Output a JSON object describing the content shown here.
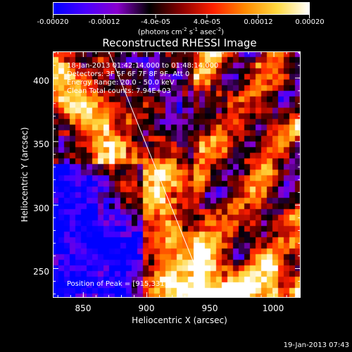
{
  "colorbar": {
    "tick_labels": [
      "-0.00020",
      "-0.00012",
      "-4.0e-05",
      "4.0e-05",
      "0.00012",
      "0.00020"
    ],
    "tick_values": [
      -0.0002,
      -0.00012,
      -4e-05,
      4e-05,
      0.00012,
      0.0002
    ],
    "range": [
      -0.0002,
      0.0002
    ],
    "units_main": "(photons cm",
    "units_exp1": "-2",
    "units_mid": " s",
    "units_exp2": "-1",
    "units_tail": " asec",
    "units_exp3": "-2",
    "units_close": ")",
    "colors": [
      "#0000ff",
      "#4a00ff",
      "#8800cc",
      "#000000",
      "#8a0000",
      "#ff2000",
      "#ff8a00",
      "#ffd840",
      "#ffffff"
    ]
  },
  "plot": {
    "title": "Reconstructed RHESSI Image",
    "xlabel": "Heliocentric X (arcsec)",
    "ylabel": "Heliocentric Y (arcsec)",
    "xlim": [
      826,
      1021
    ],
    "ylim": [
      227,
      421
    ],
    "x_ticks": [
      850,
      900,
      950,
      1000
    ],
    "y_ticks": [
      250,
      300,
      350,
      400
    ],
    "annotations": {
      "line1": "18-Jan-2013 01:42:14.000 to 01:48:14.000",
      "line2": "Detectors: 3F 5F 6F 7F 8F 9F, Att 0",
      "line3": "Energy Range: 20.0 - 50.0 keV",
      "line4": "Clean    Total counts: 7.94E+03",
      "peak": "Position of Peak = [915,331]"
    },
    "limb_line": {
      "x": [
        870,
        948
      ],
      "y": [
        421,
        227
      ]
    }
  },
  "timestamp": "19-Jan-2013 07:43"
}
